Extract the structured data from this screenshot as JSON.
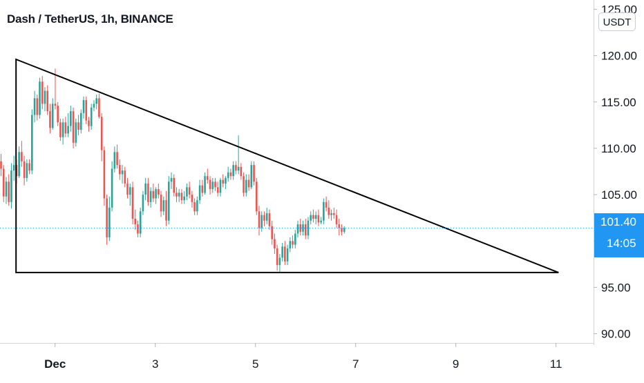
{
  "header": {
    "symbol_title": "Dash / TetherUS, 1h, BINANCE",
    "unit": "USDT"
  },
  "last_price": {
    "value": "101.40",
    "countdown": "14:05",
    "color": "#2196f3"
  },
  "colors": {
    "up": "#26a69a",
    "down": "#ef5350",
    "pattern_line": "#000000"
  },
  "chart_data": {
    "type": "candlestick",
    "title": "Dash / TetherUS, 1h, BINANCE",
    "y_axis": {
      "label": "USDT",
      "range": [
        89,
        126
      ],
      "ticks": [
        "125.00",
        "120.00",
        "115.00",
        "110.00",
        "105.00",
        "100.00",
        "95.00",
        "90.00"
      ]
    },
    "x_axis": {
      "tick_labels": [
        "Dec",
        "3",
        "5",
        "7",
        "9",
        "11"
      ],
      "tick_days": [
        1,
        3,
        5,
        7,
        9,
        11
      ],
      "range_days": [
        -0.1,
        11.75
      ]
    },
    "last_price": 101.4,
    "candles_ohlc": [
      [
        108.6,
        109.4,
        107.0,
        107.8
      ],
      [
        107.8,
        108.2,
        104.2,
        104.8
      ],
      [
        104.8,
        106.9,
        104.0,
        106.4
      ],
      [
        106.4,
        107.2,
        103.8,
        104.2
      ],
      [
        104.2,
        108.4,
        103.5,
        107.6
      ],
      [
        107.6,
        109.2,
        106.5,
        108.2
      ],
      [
        108.2,
        108.8,
        106.2,
        107.0
      ],
      [
        107.0,
        110.2,
        106.8,
        109.6
      ],
      [
        109.6,
        110.8,
        108.0,
        108.6
      ],
      [
        108.6,
        109.2,
        106.0,
        106.8
      ],
      [
        106.8,
        108.8,
        106.4,
        108.4
      ],
      [
        108.4,
        108.8,
        107.2,
        107.6
      ],
      [
        107.6,
        114.2,
        107.2,
        113.6
      ],
      [
        113.6,
        116.2,
        112.8,
        115.4
      ],
      [
        115.4,
        115.8,
        113.0,
        113.6
      ],
      [
        113.6,
        117.6,
        113.2,
        117.2
      ],
      [
        117.2,
        117.8,
        114.2,
        114.8
      ],
      [
        114.8,
        116.6,
        114.0,
        116.2
      ],
      [
        116.2,
        116.8,
        113.6,
        114.0
      ],
      [
        114.0,
        114.8,
        111.6,
        112.2
      ],
      [
        112.2,
        115.4,
        112.0,
        114.8
      ],
      [
        114.8,
        118.6,
        114.2,
        114.6
      ],
      [
        114.6,
        115.0,
        112.4,
        112.8
      ],
      [
        112.8,
        113.2,
        110.8,
        111.2
      ],
      [
        111.2,
        113.2,
        110.4,
        112.8
      ],
      [
        112.8,
        113.4,
        111.2,
        111.6
      ],
      [
        111.6,
        113.8,
        111.2,
        112.4
      ],
      [
        112.4,
        114.6,
        111.8,
        114.0
      ],
      [
        114.0,
        114.4,
        110.0,
        110.6
      ],
      [
        110.6,
        113.2,
        110.2,
        112.8
      ],
      [
        112.8,
        113.6,
        111.4,
        112.0
      ],
      [
        112.0,
        114.2,
        111.6,
        113.8
      ],
      [
        113.8,
        115.6,
        113.2,
        115.2
      ],
      [
        115.2,
        115.6,
        112.6,
        113.0
      ],
      [
        113.0,
        113.4,
        111.8,
        112.4
      ],
      [
        112.4,
        114.8,
        112.0,
        114.4
      ],
      [
        114.4,
        115.2,
        114.0,
        114.8
      ],
      [
        114.8,
        115.8,
        114.2,
        115.4
      ],
      [
        115.4,
        115.9,
        113.2,
        113.4
      ],
      [
        113.4,
        113.8,
        108.6,
        109.8
      ],
      [
        109.8,
        110.2,
        103.8,
        104.6
      ],
      [
        104.6,
        105.0,
        99.6,
        100.4
      ],
      [
        100.4,
        104.8,
        100.0,
        103.6
      ],
      [
        103.6,
        108.6,
        103.2,
        107.8
      ],
      [
        107.8,
        110.2,
        107.4,
        109.6
      ],
      [
        109.6,
        110.4,
        107.8,
        108.2
      ],
      [
        108.2,
        108.8,
        106.6,
        107.2
      ],
      [
        107.2,
        108.2,
        106.2,
        107.6
      ],
      [
        107.6,
        108.0,
        105.8,
        106.2
      ],
      [
        106.2,
        106.8,
        104.6,
        105.0
      ],
      [
        105.0,
        106.2,
        103.8,
        105.8
      ],
      [
        105.8,
        106.4,
        101.8,
        102.4
      ],
      [
        102.4,
        103.4,
        101.2,
        101.8
      ],
      [
        101.8,
        102.2,
        100.4,
        100.8
      ],
      [
        100.8,
        103.6,
        100.4,
        103.2
      ],
      [
        103.2,
        105.4,
        102.8,
        105.0
      ],
      [
        105.0,
        106.8,
        104.4,
        106.2
      ],
      [
        106.2,
        106.8,
        103.8,
        104.2
      ],
      [
        104.2,
        105.8,
        103.6,
        105.4
      ],
      [
        105.4,
        106.2,
        104.2,
        104.6
      ],
      [
        104.6,
        105.8,
        104.0,
        105.6
      ],
      [
        105.6,
        106.2,
        104.6,
        105.0
      ],
      [
        105.0,
        105.4,
        102.6,
        103.2
      ],
      [
        103.2,
        104.8,
        102.8,
        104.4
      ],
      [
        104.4,
        105.4,
        101.6,
        102.2
      ],
      [
        102.2,
        107.0,
        101.8,
        106.4
      ],
      [
        106.4,
        107.4,
        105.6,
        106.8
      ],
      [
        106.8,
        107.2,
        104.8,
        105.2
      ],
      [
        105.2,
        105.8,
        104.2,
        104.8
      ],
      [
        104.8,
        105.6,
        104.2,
        105.2
      ],
      [
        105.2,
        105.6,
        104.0,
        104.4
      ],
      [
        104.4,
        105.4,
        104.0,
        104.8
      ],
      [
        104.8,
        106.2,
        104.4,
        105.8
      ],
      [
        105.8,
        106.4,
        104.6,
        105.0
      ],
      [
        105.0,
        105.4,
        103.6,
        104.2
      ],
      [
        104.2,
        104.6,
        102.8,
        103.2
      ],
      [
        103.2,
        104.8,
        102.8,
        104.4
      ],
      [
        104.4,
        106.6,
        104.0,
        106.0
      ],
      [
        106.0,
        106.6,
        104.8,
        105.2
      ],
      [
        105.2,
        107.4,
        105.0,
        107.0
      ],
      [
        107.0,
        107.8,
        106.2,
        106.6
      ],
      [
        106.6,
        107.0,
        105.0,
        105.6
      ],
      [
        105.6,
        106.8,
        105.2,
        106.4
      ],
      [
        106.4,
        106.8,
        105.4,
        105.8
      ],
      [
        105.8,
        106.4,
        104.8,
        105.2
      ],
      [
        105.2,
        106.8,
        104.8,
        106.6
      ],
      [
        106.6,
        107.2,
        105.8,
        106.2
      ],
      [
        106.2,
        107.0,
        105.6,
        106.8
      ],
      [
        106.8,
        108.0,
        106.4,
        107.4
      ],
      [
        107.4,
        107.8,
        106.6,
        107.0
      ],
      [
        107.0,
        108.6,
        106.6,
        108.2
      ],
      [
        108.2,
        108.6,
        107.2,
        107.6
      ],
      [
        107.6,
        111.4,
        107.2,
        108.0
      ],
      [
        108.0,
        108.4,
        106.6,
        107.0
      ],
      [
        107.0,
        107.4,
        104.8,
        105.2
      ],
      [
        105.2,
        107.2,
        104.8,
        106.6
      ],
      [
        106.6,
        107.2,
        105.4,
        105.8
      ],
      [
        105.8,
        108.6,
        105.6,
        108.2
      ],
      [
        108.2,
        108.6,
        106.0,
        106.4
      ],
      [
        106.4,
        106.8,
        102.8,
        103.2
      ],
      [
        103.2,
        103.8,
        100.6,
        101.4
      ],
      [
        101.4,
        103.2,
        101.0,
        102.8
      ],
      [
        102.8,
        103.2,
        101.6,
        102.2
      ],
      [
        102.2,
        103.6,
        101.8,
        103.0
      ],
      [
        103.0,
        103.4,
        101.2,
        101.6
      ],
      [
        101.6,
        102.2,
        99.6,
        100.2
      ],
      [
        100.2,
        100.8,
        98.6,
        99.2
      ],
      [
        99.2,
        99.6,
        96.8,
        97.4
      ],
      [
        97.4,
        98.6,
        96.6,
        98.2
      ],
      [
        98.2,
        99.8,
        97.8,
        99.4
      ],
      [
        99.4,
        100.0,
        97.4,
        97.8
      ],
      [
        97.8,
        99.6,
        97.4,
        99.2
      ],
      [
        99.2,
        100.4,
        98.8,
        100.0
      ],
      [
        100.0,
        100.6,
        99.2,
        99.6
      ],
      [
        99.6,
        101.2,
        99.2,
        100.8
      ],
      [
        100.8,
        102.2,
        100.4,
        101.8
      ],
      [
        101.8,
        102.4,
        100.6,
        101.0
      ],
      [
        101.0,
        102.2,
        100.6,
        101.8
      ],
      [
        101.8,
        102.4,
        100.2,
        100.6
      ],
      [
        100.6,
        102.6,
        100.2,
        102.2
      ],
      [
        102.2,
        103.2,
        101.8,
        102.8
      ],
      [
        102.8,
        103.4,
        102.0,
        102.4
      ],
      [
        102.4,
        103.2,
        101.8,
        102.8
      ],
      [
        102.8,
        103.4,
        101.6,
        102.0
      ],
      [
        102.0,
        102.6,
        101.8,
        102.2
      ],
      [
        102.2,
        104.6,
        101.8,
        104.2
      ],
      [
        104.2,
        104.8,
        103.2,
        103.6
      ],
      [
        103.6,
        104.4,
        102.4,
        102.8
      ],
      [
        102.8,
        103.4,
        102.2,
        103.0
      ],
      [
        103.0,
        103.6,
        102.4,
        102.8
      ],
      [
        102.8,
        103.4,
        101.4,
        101.8
      ],
      [
        101.8,
        102.4,
        100.6,
        101.4
      ],
      [
        101.4,
        101.8,
        100.6,
        101.0
      ],
      [
        101.0,
        101.6,
        100.8,
        101.4
      ]
    ],
    "drawings": [
      {
        "type": "triangle",
        "points": [
          {
            "day": 0.22,
            "price": 119.6
          },
          {
            "day": 11.05,
            "price": 96.6
          },
          {
            "day": 0.22,
            "price": 96.6
          }
        ]
      }
    ]
  }
}
